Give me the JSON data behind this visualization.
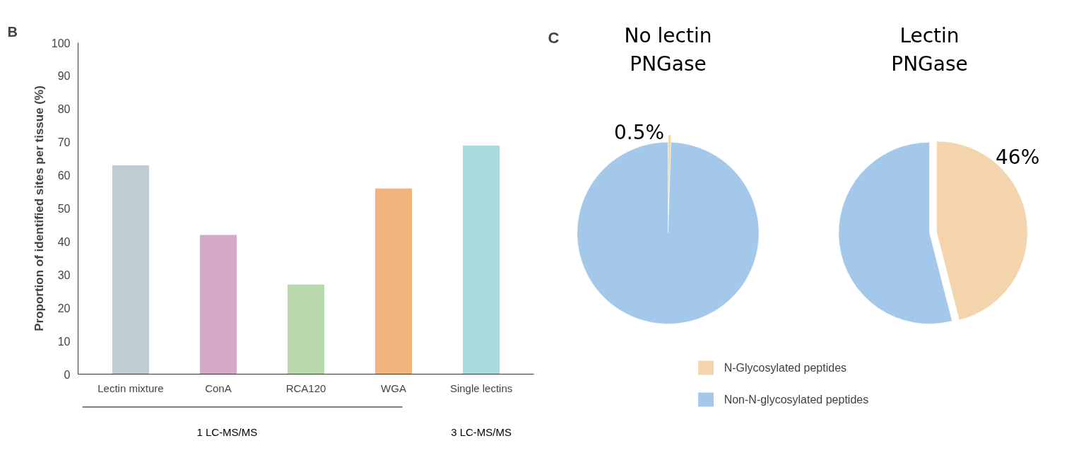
{
  "chart_data": [
    {
      "type": "bar",
      "categories": [
        "Lectin mixture",
        "ConA",
        "RCA120",
        "WGA",
        "Single lectins"
      ],
      "values": [
        63,
        42,
        27,
        56,
        69
      ],
      "colors": [
        "#c0ccd4",
        "#d4a9c8",
        "#b9d8ab",
        "#f2b47c",
        "#abdae1"
      ],
      "ylabel": "Proportion of identified sites per tissue (%)",
      "ylim": [
        0,
        100
      ],
      "yticks": [
        0,
        10,
        20,
        30,
        40,
        50,
        60,
        70,
        80,
        90,
        100
      ],
      "annotations": [
        "B",
        "1 LC-MS/MS",
        "3 LC-MS/MS"
      ]
    },
    {
      "type": "pie",
      "title": "No lectin\nPNGase",
      "categories": [
        "N-Glycosylated peptides",
        "Non-N-glycosylated peptides"
      ],
      "values": [
        0.5,
        99.5
      ],
      "colors": [
        "#f3d4ac",
        "#a4c8ea"
      ],
      "value_labels": [
        "0.5%",
        null
      ],
      "annotations": [
        "C"
      ],
      "legend": "bottom"
    },
    {
      "type": "pie",
      "title": "Lectin\nPNGase",
      "values": [
        46,
        54
      ],
      "colors": [
        "#f3d4ac",
        "#a4c8ea"
      ],
      "value_labels": [
        "46%",
        null
      ]
    }
  ]
}
